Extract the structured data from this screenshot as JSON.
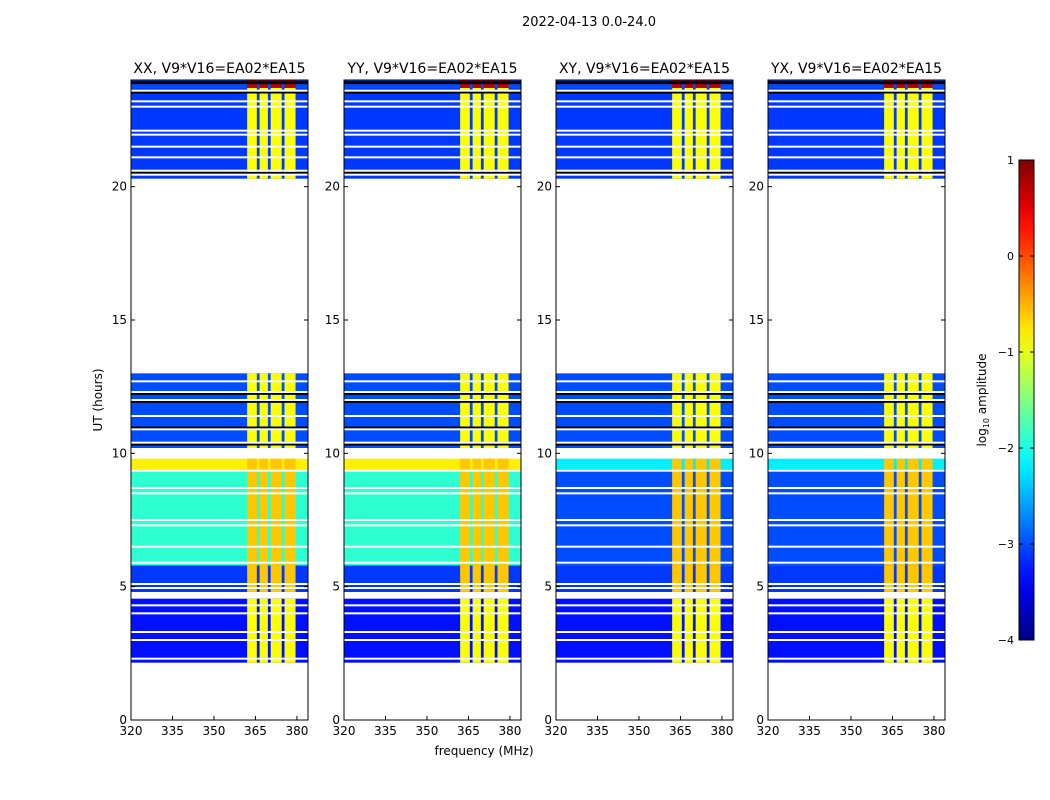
{
  "chart_data": {
    "type": "heatmap",
    "title": "2022-04-13 0.0-24.0",
    "xlabel": "frequency (MHz)",
    "ylabel": "UT (hours)",
    "xlim": [
      320,
      384
    ],
    "ylim": [
      0,
      24
    ],
    "xticks": [
      320,
      335,
      350,
      365,
      380
    ],
    "yticks": [
      0,
      5,
      10,
      15,
      20
    ],
    "colorbar": {
      "label": "log10 amplitude",
      "label_main": "log",
      "label_sub": "10",
      "label_tail": " amplitude",
      "range": [
        -4,
        1
      ],
      "ticks": [
        -4,
        -3,
        -2,
        -1,
        0,
        1
      ],
      "tick_labels": [
        "−4",
        "−3",
        "−2",
        "−1",
        "0",
        "1"
      ],
      "colormap": "jet"
    },
    "panels": [
      {
        "title": "XX, V9*V16=EA02*EA15",
        "mid_level": -1.9,
        "flag_band": -0.8
      },
      {
        "title": "YY, V9*V16=EA02*EA15",
        "mid_level": -1.9,
        "flag_band": -0.8
      },
      {
        "title": "XY, V9*V16=EA02*EA15",
        "mid_level": -3.0,
        "flag_band": -2.2
      },
      {
        "title": "YX, V9*V16=EA02*EA15",
        "mid_level": -3.0,
        "flag_band": -2.2
      }
    ],
    "time_blocks": [
      {
        "start": 2.15,
        "end": 4.55,
        "level": -3.3
      },
      {
        "start": 4.8,
        "end": 5.8,
        "level": -3.1
      },
      {
        "start": 5.8,
        "end": 9.4,
        "level": "mid"
      },
      {
        "start": 9.4,
        "end": 9.8,
        "level": "flag"
      },
      {
        "start": 10.2,
        "end": 13.0,
        "level": -3.0
      },
      {
        "start": 20.3,
        "end": 23.7,
        "level": -3.1
      },
      {
        "start": 23.7,
        "end": 24.0,
        "level": -3.0
      }
    ],
    "rfi_columns": [
      [
        362,
        365.5
      ],
      [
        366.5,
        369.5
      ],
      [
        370.5,
        374.5
      ],
      [
        375.5,
        379.5
      ]
    ],
    "rfi_level": -0.9,
    "rfi_top_level": 0.7,
    "flagged_hours": [
      2.05,
      2.3,
      3.0,
      3.3,
      4.0,
      4.3,
      4.95,
      5.1,
      5.9,
      6.5,
      7.3,
      7.5,
      8.5,
      8.7,
      9.35,
      10.4,
      10.9,
      11.4,
      12.0,
      12.3,
      12.7,
      20.45,
      20.6,
      21.1,
      21.5,
      21.95,
      22.1,
      23.0,
      23.2,
      23.6
    ]
  }
}
